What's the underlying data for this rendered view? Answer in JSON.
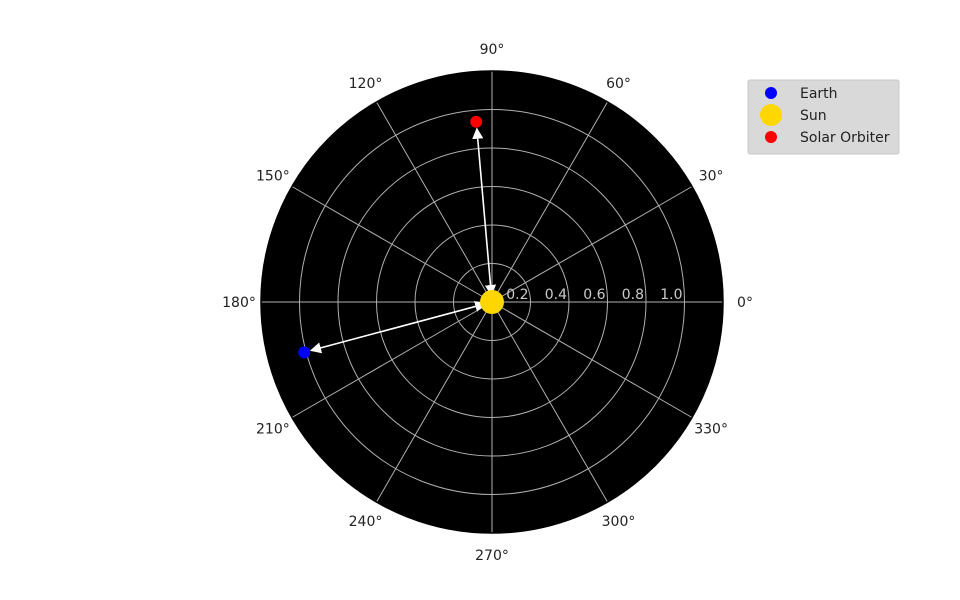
{
  "chart_data": {
    "type": "scatter",
    "projection": "polar",
    "background_color": "#000000",
    "grid": true,
    "grid_color": "#b0b0b0",
    "rlim": [
      0,
      1.2
    ],
    "radial_ticks": [
      0.2,
      0.4,
      0.6,
      0.8,
      1.0
    ],
    "radial_tick_labels": [
      "0.2",
      "0.4",
      "0.6",
      "0.8",
      "1.0"
    ],
    "angular_ticks_deg": [
      0,
      30,
      60,
      90,
      120,
      150,
      180,
      210,
      240,
      270,
      300,
      330
    ],
    "angular_tick_labels": [
      "0°",
      "30°",
      "60°",
      "90°",
      "120°",
      "150°",
      "180°",
      "210°",
      "240°",
      "270°",
      "300°",
      "330°"
    ],
    "legend_position": "top-right",
    "series": [
      {
        "name": "Earth",
        "color": "#0000ff",
        "points": [
          {
            "theta_deg": 195,
            "r": 1.01
          }
        ]
      },
      {
        "name": "Sun",
        "color": "#ffd700",
        "points": [
          {
            "theta_deg": 0,
            "r": 0.0
          }
        ]
      },
      {
        "name": "Solar Orbiter",
        "color": "#ff0000",
        "points": [
          {
            "theta_deg": 95,
            "r": 0.94
          }
        ]
      }
    ],
    "arrows": [
      {
        "from": "Sun",
        "to": "Earth",
        "color": "#ffffff"
      },
      {
        "from": "Sun",
        "to": "Solar Orbiter",
        "color": "#ffffff"
      }
    ]
  }
}
